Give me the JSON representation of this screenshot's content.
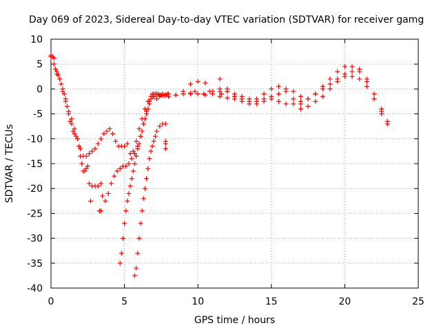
{
  "chart_data": {
    "type": "scatter",
    "title": "Day 069 of 2023, Sidereal Day-to-day VTEC variation (SDTVAR) for receiver gamg",
    "xlabel": "GPS time / hours",
    "ylabel": "SDTVAR / TECUs",
    "xlim": [
      0,
      25
    ],
    "ylim": [
      -40,
      10
    ],
    "x_ticks": [
      0,
      5,
      10,
      15,
      20,
      25
    ],
    "y_ticks": [
      -40,
      -35,
      -30,
      -25,
      -20,
      -15,
      -10,
      -5,
      0,
      5,
      10
    ],
    "grid": true,
    "marker": "+",
    "color": "#ff0000",
    "series": [
      {
        "name": "trace-1",
        "x": [
          0.0,
          0.2,
          0.4,
          0.6,
          0.8,
          1.0,
          1.2,
          1.4,
          1.6,
          1.8,
          2.0,
          2.2,
          2.4,
          2.6,
          2.8,
          3.0,
          3.2,
          3.4,
          3.6,
          3.8,
          4.0,
          4.2,
          4.4,
          4.6,
          4.8,
          5.0,
          5.2,
          5.4,
          5.6,
          5.8,
          6.0,
          6.2,
          6.4,
          6.6,
          6.8,
          7.0,
          7.2,
          7.4,
          7.6,
          7.8
        ],
        "y": [
          6.5,
          5.0,
          3.5,
          2.0,
          0.0,
          -2.0,
          -4.5,
          -6.0,
          -8.0,
          -10.0,
          -12.0,
          -13.5,
          -13.5,
          -13.0,
          -12.5,
          -12.0,
          -11.0,
          -10.0,
          -9.0,
          -8.5,
          -8.0,
          -9.0,
          -10.5,
          -11.5,
          -11.5,
          -11.5,
          -11.0,
          -13.0,
          -12.5,
          -10.5,
          -8.0,
          -6.0,
          -4.0,
          -2.5,
          -1.5,
          -1.0,
          -1.0,
          -1.2,
          -1.3,
          -1.2
        ]
      },
      {
        "name": "trace-2",
        "x": [
          0.0,
          0.1,
          0.2,
          0.3,
          0.4,
          0.5,
          0.6,
          0.7,
          0.8,
          0.9,
          1.0,
          1.1,
          1.2,
          1.3,
          1.4,
          1.5,
          1.6,
          1.7,
          1.8,
          1.9,
          2.0,
          2.1,
          2.2,
          2.3,
          2.4,
          2.5
        ],
        "y": [
          6.8,
          6.5,
          6.2,
          4.0,
          3.0,
          2.8,
          2.0,
          1.0,
          -0.5,
          -1.0,
          -2.5,
          -3.5,
          -5.0,
          -6.5,
          -7.0,
          -8.5,
          -9.0,
          -9.5,
          -10.0,
          -11.5,
          -13.5,
          -15.0,
          -16.5,
          -16.5,
          -16.0,
          -15.5
        ]
      },
      {
        "name": "trace-3",
        "x": [
          2.6,
          2.8,
          3.0,
          3.2,
          3.4,
          3.5,
          3.7,
          3.9,
          4.1,
          4.3,
          4.5,
          4.7,
          4.9,
          5.1,
          5.3,
          5.5,
          5.7,
          5.9,
          6.1,
          6.3,
          6.5,
          6.7,
          6.9,
          7.1,
          7.3,
          7.5,
          7.7,
          7.9
        ],
        "y": [
          -19.0,
          -19.5,
          -19.5,
          -19.5,
          -19.0,
          -21.5,
          -22.5,
          -21.0,
          -19.0,
          -17.5,
          -16.5,
          -16.0,
          -15.5,
          -15.5,
          -15.0,
          -14.0,
          -13.0,
          -11.5,
          -9.5,
          -7.0,
          -4.5,
          -2.5,
          -1.5,
          -1.0,
          -1.0,
          -1.2,
          -1.3,
          -1.0
        ]
      },
      {
        "name": "trace-4",
        "x": [
          4.7,
          4.8,
          4.9,
          5.0,
          5.1,
          5.2,
          5.3,
          5.4,
          5.5,
          5.6,
          5.7,
          5.8,
          5.9,
          6.0,
          6.1,
          6.2,
          6.3,
          6.4,
          6.5,
          6.6,
          6.7,
          6.8,
          6.9,
          7.0,
          7.2,
          7.4,
          7.6
        ],
        "y": [
          -35.0,
          -33.0,
          -30.0,
          -27.0,
          -24.5,
          -22.5,
          -21.0,
          -19.5,
          -18.0,
          -16.5,
          -15.0,
          -13.5,
          -12.0,
          -11.0,
          -9.5,
          -8.5,
          -7.0,
          -6.0,
          -5.0,
          -4.0,
          -3.0,
          -2.0,
          -1.0,
          -1.5,
          -2.0,
          -1.5,
          -1.0
        ]
      },
      {
        "name": "trace-5",
        "x": [
          5.7,
          5.8,
          5.9,
          6.0,
          6.1,
          6.2,
          6.3,
          6.4,
          6.5,
          6.6,
          6.7,
          6.8,
          6.9,
          7.0,
          7.1,
          7.2,
          7.4,
          7.6,
          7.8
        ],
        "y": [
          -37.5,
          -36.0,
          -33.0,
          -30.0,
          -27.0,
          -24.5,
          -22.0,
          -20.0,
          -18.0,
          -16.0,
          -14.0,
          -12.5,
          -11.5,
          -10.5,
          -9.5,
          -8.5,
          -7.5,
          -7.0,
          -7.0
        ]
      },
      {
        "name": "trace-6",
        "x": [
          7.0,
          7.5,
          8.0,
          8.5,
          9.0,
          9.5,
          10.0,
          10.5,
          11.0,
          11.5,
          12.0,
          12.5,
          13.0,
          13.5,
          14.0,
          14.5,
          15.0,
          15.5,
          16.0,
          16.5,
          17.0,
          17.5,
          18.0,
          18.5,
          19.0,
          19.5,
          20.0,
          20.5,
          21.0,
          21.5,
          22.0,
          22.5,
          22.9
        ],
        "y": [
          -1.5,
          -1.2,
          -1.0,
          -1.2,
          -0.5,
          1.0,
          1.5,
          1.2,
          -0.5,
          -0.5,
          -0.5,
          -1.5,
          -2.0,
          -2.5,
          -2.5,
          -2.0,
          -1.5,
          -1.0,
          0.0,
          -0.5,
          -1.5,
          -2.0,
          -1.0,
          0.5,
          2.0,
          3.5,
          4.5,
          4.5,
          4.0,
          2.0,
          -1.0,
          -4.0,
          -6.5
        ]
      },
      {
        "name": "trace-7",
        "x": [
          8.0,
          8.5,
          9.0,
          9.5,
          10.0,
          10.5,
          11.0,
          11.5,
          12.0,
          12.5,
          13.0,
          13.5,
          14.0,
          14.5,
          15.0,
          15.5,
          16.0,
          16.5,
          17.0,
          17.5,
          18.0,
          18.5,
          19.0,
          19.5,
          20.0,
          20.5,
          21.0,
          21.5,
          22.0,
          22.5,
          22.9
        ],
        "y": [
          -1.5,
          -1.2,
          -1.0,
          -0.8,
          -1.0,
          -1.2,
          -1.0,
          -1.5,
          -1.8,
          -2.0,
          -2.5,
          -3.0,
          -3.0,
          -2.5,
          -2.0,
          -2.5,
          -3.0,
          -3.0,
          -2.5,
          -2.0,
          -1.0,
          0.0,
          1.0,
          2.0,
          2.5,
          2.5,
          2.0,
          0.5,
          -2.0,
          -4.5,
          -7.0
        ]
      },
      {
        "name": "trace-8",
        "x": [
          12.0,
          12.5,
          13.0,
          13.5,
          14.0,
          14.5,
          15.0,
          15.5,
          16.0,
          16.5,
          17.0,
          17.5,
          18.0,
          18.5,
          19.0,
          19.5,
          20.0,
          20.5,
          21.0,
          21.5,
          22.0,
          22.5,
          22.9
        ],
        "y": [
          0.0,
          -1.0,
          -1.5,
          -2.0,
          -2.0,
          -1.0,
          0.0,
          0.5,
          -0.5,
          -2.0,
          -3.0,
          -3.5,
          -2.5,
          -1.5,
          0.0,
          1.5,
          3.0,
          3.5,
          3.5,
          1.5,
          -2.0,
          -5.0,
          -7.0
        ]
      },
      {
        "name": "isolated",
        "x": [
          2.7,
          3.3,
          3.4,
          7.8,
          7.8,
          7.8,
          9.5,
          9.8,
          10.4,
          10.8,
          11.5,
          11.5,
          11.6,
          12.0,
          12.5,
          17.0
        ],
        "y": [
          -22.5,
          -24.5,
          -24.5,
          -10.5,
          -11.0,
          -12.0,
          -1.0,
          -0.5,
          -1.0,
          -0.5,
          2.0,
          0.0,
          -1.0,
          -0.5,
          -1.5,
          -4.0
        ]
      }
    ]
  }
}
